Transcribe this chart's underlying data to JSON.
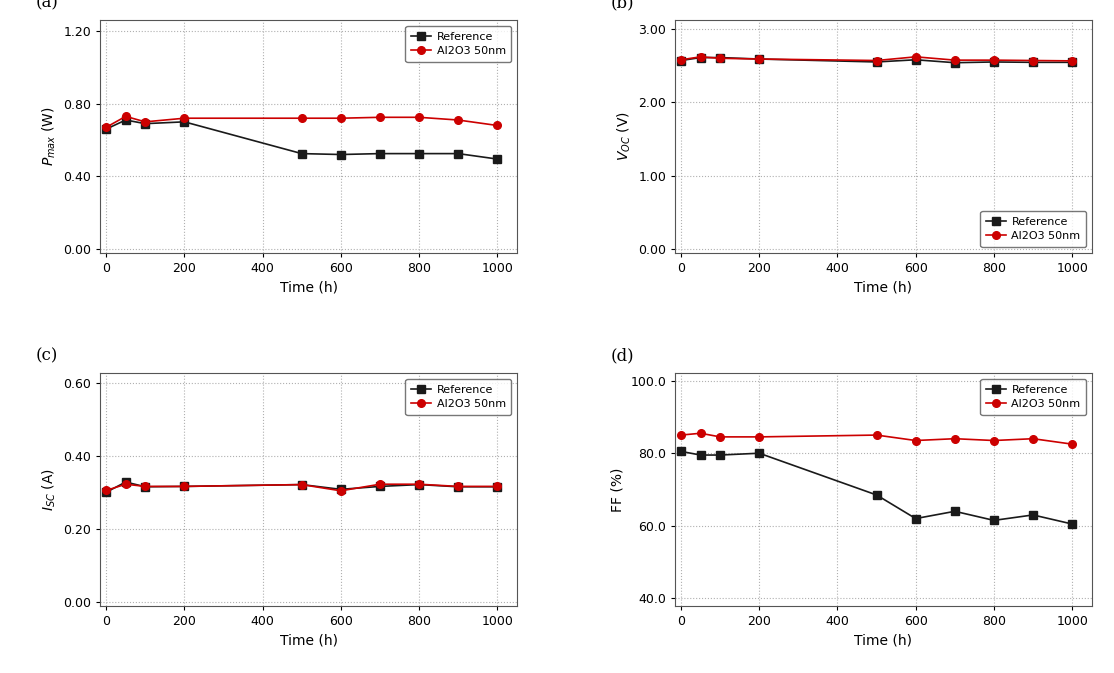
{
  "time_a": [
    0,
    50,
    100,
    200,
    500,
    600,
    700,
    800,
    900,
    1000
  ],
  "ref_pmax": [
    0.66,
    0.71,
    0.69,
    0.7,
    0.525,
    0.52,
    0.525,
    0.525,
    0.525,
    0.495
  ],
  "al_pmax": [
    0.67,
    0.73,
    0.7,
    0.72,
    0.72,
    0.72,
    0.725,
    0.725,
    0.71,
    0.68
  ],
  "time_b": [
    0,
    50,
    100,
    200,
    500,
    600,
    700,
    800,
    900,
    1000
  ],
  "ref_voc": [
    2.57,
    2.61,
    2.61,
    2.59,
    2.55,
    2.58,
    2.54,
    2.55,
    2.545,
    2.545
  ],
  "al_voc": [
    2.58,
    2.62,
    2.6,
    2.59,
    2.57,
    2.62,
    2.575,
    2.575,
    2.57,
    2.565
  ],
  "time_c": [
    0,
    50,
    100,
    200,
    500,
    600,
    700,
    800,
    900,
    1000
  ],
  "ref_isc": [
    0.3,
    0.328,
    0.315,
    0.316,
    0.321,
    0.308,
    0.316,
    0.321,
    0.315,
    0.315
  ],
  "al_isc": [
    0.305,
    0.322,
    0.316,
    0.316,
    0.321,
    0.304,
    0.322,
    0.322,
    0.316,
    0.316
  ],
  "time_d": [
    0,
    50,
    100,
    200,
    500,
    600,
    700,
    800,
    900,
    1000
  ],
  "ref_ff": [
    80.5,
    79.5,
    79.5,
    80.0,
    68.5,
    62.0,
    64.0,
    61.5,
    63.0,
    60.5
  ],
  "al_ff": [
    85.0,
    85.5,
    84.5,
    84.5,
    85.0,
    83.5,
    84.0,
    83.5,
    84.0,
    82.5
  ],
  "ref_color": "#1a1a1a",
  "al_color": "#cc0000",
  "ref_marker": "s",
  "al_marker": "o",
  "ref_label": "Reference",
  "al_label": "Al2O3 50nm",
  "xlabel": "Time (h)",
  "ylabel_a": "$P_{max}$ (W)",
  "ylabel_b": "$V_{OC}$ (V)",
  "ylabel_c": "$I_{SC}$ (A)",
  "ylabel_d": "FF (%)",
  "label_a": "(a)",
  "label_b": "(b)",
  "label_c": "(c)",
  "label_d": "(d)",
  "xlim": [
    -15,
    1050
  ],
  "xticks": [
    0,
    200,
    400,
    600,
    800,
    1000
  ],
  "ylim_a": [
    -0.02,
    1.26
  ],
  "yticks_a": [
    0.0,
    0.4,
    0.8,
    1.2
  ],
  "ylim_b": [
    -0.05,
    3.12
  ],
  "yticks_b": [
    0.0,
    1.0,
    2.0,
    3.0
  ],
  "ylim_c": [
    -0.01,
    0.625
  ],
  "yticks_c": [
    0.0,
    0.2,
    0.4,
    0.6
  ],
  "ylim_d": [
    38.0,
    102.0
  ],
  "yticks_d": [
    40.0,
    60.0,
    80.0,
    100.0
  ],
  "bg_color": "#ffffff",
  "grid_color": "#b0b0b0",
  "linewidth": 1.2,
  "markersize": 5.5,
  "markerfacecolor_ref": "#1a1a1a",
  "markerfacecolor_al": "#cc0000"
}
